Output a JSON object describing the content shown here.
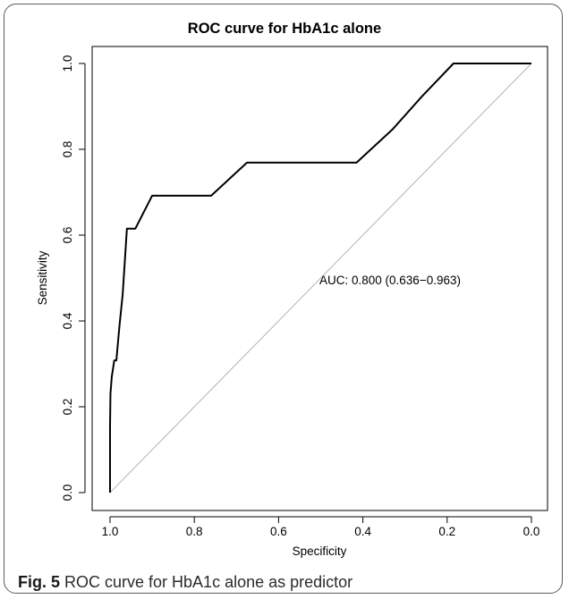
{
  "chart_data": {
    "type": "line",
    "title": "ROC curve for HbA1c alone",
    "xlabel": "Specificity",
    "ylabel": "Sensitivity",
    "xlim": [
      1.0,
      0.0
    ],
    "ylim": [
      0.0,
      1.0
    ],
    "x_reversed": true,
    "xticks": [
      "1.0",
      "0.8",
      "0.6",
      "0.4",
      "0.2",
      "0.0"
    ],
    "yticks": [
      "0.0",
      "0.2",
      "0.4",
      "0.6",
      "0.8",
      "1.0"
    ],
    "grid": false,
    "legend": "none",
    "annotation": "AUC: 0.800 (0.636−0.963)",
    "series": [
      {
        "specificity": [
          1.0,
          1.0,
          0.999,
          0.996,
          0.99,
          0.985,
          0.978,
          0.97,
          0.96,
          0.94,
          0.9,
          0.76,
          0.675,
          0.52,
          0.415,
          0.33,
          0.26,
          0.185,
          0.0
        ],
        "sensitivity": [
          0.0,
          0.154,
          0.231,
          0.269,
          0.308,
          0.308,
          0.385,
          0.462,
          0.615,
          0.615,
          0.692,
          0.692,
          0.769,
          0.769,
          0.769,
          0.846,
          0.923,
          1.0,
          1.0
        ],
        "color": "#000000"
      }
    ],
    "reference_line": {
      "from": [
        1.0,
        0.0
      ],
      "to": [
        0.0,
        1.0
      ],
      "color": "#b4b4b4"
    }
  },
  "caption": {
    "label": "Fig. 5",
    "text": " ROC curve for HbA1c alone as predictor"
  }
}
